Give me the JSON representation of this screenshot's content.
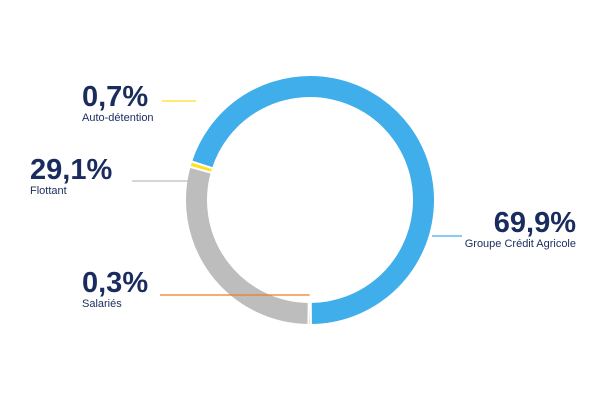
{
  "chart_data": {
    "type": "pie",
    "variant": "donut",
    "title": "",
    "slices": [
      {
        "label": "Groupe Crédit Agricole",
        "value_text": "69,9%",
        "value": 69.9,
        "color": "#40aeea"
      },
      {
        "label": "Salariés",
        "value_text": "0,3%",
        "value": 0.3,
        "color": "#f47b20"
      },
      {
        "label": "Flottant",
        "value_text": "29,1%",
        "value": 29.1,
        "color": "#bdbdbd"
      },
      {
        "label": "Auto-détention",
        "value_text": "0,7%",
        "value": 0.7,
        "color": "#ffe01b"
      }
    ],
    "legend": "none",
    "leader_line_colors": {
      "Groupe Crédit Agricole": "#40aeea",
      "Salariés": "#f47b20",
      "Flottant": "#bdbdbd",
      "Auto-détention": "#ffe01b"
    }
  }
}
